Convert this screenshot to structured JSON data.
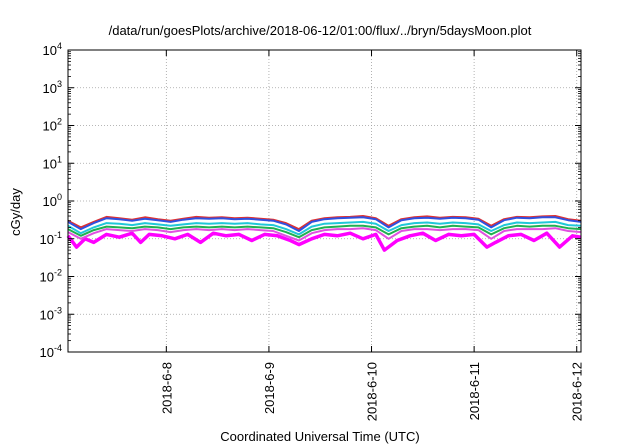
{
  "chart_data": {
    "type": "line",
    "title": "/data/run/goesPlots/archive/2018-06-12/01:00/flux/../bryn/5daysMoon.plot",
    "xlabel": "Coordinated Universal Time (UTC)",
    "ylabel": "cGy/day",
    "yscale": "log",
    "ylim": [
      0.0001,
      10000
    ],
    "y_ticks": [
      {
        "base": "10",
        "exp": "-4",
        "value": 0.0001
      },
      {
        "base": "10",
        "exp": "-3",
        "value": 0.001
      },
      {
        "base": "10",
        "exp": "-2",
        "value": 0.01
      },
      {
        "base": "10",
        "exp": "-1",
        "value": 0.1
      },
      {
        "base": "10",
        "exp": "0",
        "value": 1
      },
      {
        "base": "10",
        "exp": "1",
        "value": 10
      },
      {
        "base": "10",
        "exp": "2",
        "value": 100
      },
      {
        "base": "10",
        "exp": "3",
        "value": 1000
      },
      {
        "base": "10",
        "exp": "4",
        "value": 10000
      }
    ],
    "xlim": [
      "2018-06-07T01:00",
      "2018-06-12T01:00"
    ],
    "x_ticks": [
      {
        "label": "2018-6-8",
        "date": "2018-06-08"
      },
      {
        "label": "2018-6-9",
        "date": "2018-06-09"
      },
      {
        "label": "2018-6-10",
        "date": "2018-06-10"
      },
      {
        "label": "2018-6-11",
        "date": "2018-06-11"
      },
      {
        "label": "2018-6-12",
        "date": "2018-06-12"
      }
    ],
    "grid": true,
    "series": [
      {
        "color": "#e03030",
        "x": [
          "2018-06-07T01:00",
          "2018-06-07T04:00",
          "2018-06-07T07:00",
          "2018-06-07T10:00",
          "2018-06-07T13:00",
          "2018-06-07T16:00",
          "2018-06-07T19:00",
          "2018-06-07T22:00",
          "2018-06-08T01:00",
          "2018-06-08T04:00",
          "2018-06-08T07:00",
          "2018-06-08T10:00",
          "2018-06-08T13:00",
          "2018-06-08T16:00",
          "2018-06-08T19:00",
          "2018-06-08T22:00",
          "2018-06-09T01:00",
          "2018-06-09T04:00",
          "2018-06-09T07:00",
          "2018-06-09T10:00",
          "2018-06-09T13:00",
          "2018-06-09T16:00",
          "2018-06-09T19:00",
          "2018-06-09T22:00",
          "2018-06-10T01:00",
          "2018-06-10T04:00",
          "2018-06-10T07:00",
          "2018-06-10T10:00",
          "2018-06-10T13:00",
          "2018-06-10T16:00",
          "2018-06-10T19:00",
          "2018-06-10T22:00",
          "2018-06-11T01:00",
          "2018-06-11T04:00",
          "2018-06-11T07:00",
          "2018-06-11T10:00",
          "2018-06-11T13:00",
          "2018-06-11T16:00",
          "2018-06-11T19:00",
          "2018-06-11T22:00",
          "2018-06-12T01:00"
        ],
        "y": [
          0.3,
          0.2,
          0.28,
          0.38,
          0.35,
          0.32,
          0.37,
          0.33,
          0.3,
          0.34,
          0.38,
          0.36,
          0.37,
          0.35,
          0.36,
          0.34,
          0.32,
          0.26,
          0.18,
          0.3,
          0.35,
          0.37,
          0.38,
          0.4,
          0.35,
          0.22,
          0.33,
          0.37,
          0.39,
          0.36,
          0.38,
          0.37,
          0.34,
          0.22,
          0.33,
          0.38,
          0.37,
          0.39,
          0.4,
          0.33,
          0.3
        ]
      },
      {
        "color": "#3050e0",
        "x": [
          "2018-06-07T01:00",
          "2018-06-07T04:00",
          "2018-06-07T07:00",
          "2018-06-07T10:00",
          "2018-06-07T13:00",
          "2018-06-07T16:00",
          "2018-06-07T19:00",
          "2018-06-07T22:00",
          "2018-06-08T01:00",
          "2018-06-08T04:00",
          "2018-06-08T07:00",
          "2018-06-08T10:00",
          "2018-06-08T13:00",
          "2018-06-08T16:00",
          "2018-06-08T19:00",
          "2018-06-08T22:00",
          "2018-06-09T01:00",
          "2018-06-09T04:00",
          "2018-06-09T07:00",
          "2018-06-09T10:00",
          "2018-06-09T13:00",
          "2018-06-09T16:00",
          "2018-06-09T19:00",
          "2018-06-09T22:00",
          "2018-06-10T01:00",
          "2018-06-10T04:00",
          "2018-06-10T07:00",
          "2018-06-10T10:00",
          "2018-06-10T13:00",
          "2018-06-10T16:00",
          "2018-06-10T19:00",
          "2018-06-10T22:00",
          "2018-06-11T01:00",
          "2018-06-11T04:00",
          "2018-06-11T07:00",
          "2018-06-11T10:00",
          "2018-06-11T13:00",
          "2018-06-11T16:00",
          "2018-06-11T19:00",
          "2018-06-11T22:00",
          "2018-06-12T01:00"
        ],
        "y": [
          0.28,
          0.18,
          0.26,
          0.35,
          0.33,
          0.3,
          0.34,
          0.31,
          0.28,
          0.32,
          0.35,
          0.34,
          0.35,
          0.33,
          0.34,
          0.32,
          0.3,
          0.24,
          0.16,
          0.28,
          0.33,
          0.35,
          0.36,
          0.37,
          0.33,
          0.2,
          0.31,
          0.35,
          0.36,
          0.34,
          0.36,
          0.35,
          0.32,
          0.2,
          0.31,
          0.36,
          0.35,
          0.37,
          0.37,
          0.31,
          0.28
        ]
      },
      {
        "color": "#20c8d8",
        "x": [
          "2018-06-07T01:00",
          "2018-06-07T04:00",
          "2018-06-07T07:00",
          "2018-06-07T10:00",
          "2018-06-07T13:00",
          "2018-06-07T16:00",
          "2018-06-07T19:00",
          "2018-06-07T22:00",
          "2018-06-08T01:00",
          "2018-06-08T04:00",
          "2018-06-08T07:00",
          "2018-06-08T10:00",
          "2018-06-08T13:00",
          "2018-06-08T16:00",
          "2018-06-08T19:00",
          "2018-06-08T22:00",
          "2018-06-09T01:00",
          "2018-06-09T04:00",
          "2018-06-09T07:00",
          "2018-06-09T10:00",
          "2018-06-09T13:00",
          "2018-06-09T16:00",
          "2018-06-09T19:00",
          "2018-06-09T22:00",
          "2018-06-10T01:00",
          "2018-06-10T04:00",
          "2018-06-10T07:00",
          "2018-06-10T10:00",
          "2018-06-10T13:00",
          "2018-06-10T16:00",
          "2018-06-10T19:00",
          "2018-06-10T22:00",
          "2018-06-11T01:00",
          "2018-06-11T04:00",
          "2018-06-11T07:00",
          "2018-06-11T10:00",
          "2018-06-11T13:00",
          "2018-06-11T16:00",
          "2018-06-11T19:00",
          "2018-06-11T22:00",
          "2018-06-12T01:00"
        ],
        "y": [
          0.22,
          0.14,
          0.2,
          0.26,
          0.25,
          0.23,
          0.26,
          0.24,
          0.22,
          0.24,
          0.26,
          0.25,
          0.26,
          0.25,
          0.26,
          0.24,
          0.23,
          0.18,
          0.13,
          0.21,
          0.25,
          0.26,
          0.27,
          0.28,
          0.25,
          0.16,
          0.23,
          0.26,
          0.27,
          0.25,
          0.27,
          0.26,
          0.24,
          0.16,
          0.23,
          0.27,
          0.26,
          0.27,
          0.28,
          0.23,
          0.22
        ]
      },
      {
        "color": "#20b050",
        "x": [
          "2018-06-07T01:00",
          "2018-06-07T04:00",
          "2018-06-07T07:00",
          "2018-06-07T10:00",
          "2018-06-07T13:00",
          "2018-06-07T16:00",
          "2018-06-07T19:00",
          "2018-06-07T22:00",
          "2018-06-08T01:00",
          "2018-06-08T04:00",
          "2018-06-08T07:00",
          "2018-06-08T10:00",
          "2018-06-08T13:00",
          "2018-06-08T16:00",
          "2018-06-08T19:00",
          "2018-06-08T22:00",
          "2018-06-09T01:00",
          "2018-06-09T04:00",
          "2018-06-09T07:00",
          "2018-06-09T10:00",
          "2018-06-09T13:00",
          "2018-06-09T16:00",
          "2018-06-09T19:00",
          "2018-06-09T22:00",
          "2018-06-10T01:00",
          "2018-06-10T04:00",
          "2018-06-10T07:00",
          "2018-06-10T10:00",
          "2018-06-10T13:00",
          "2018-06-10T16:00",
          "2018-06-10T19:00",
          "2018-06-10T22:00",
          "2018-06-11T01:00",
          "2018-06-11T04:00",
          "2018-06-11T07:00",
          "2018-06-11T10:00",
          "2018-06-11T13:00",
          "2018-06-11T16:00",
          "2018-06-11T19:00",
          "2018-06-11T22:00",
          "2018-06-12T01:00"
        ],
        "y": [
          0.18,
          0.12,
          0.17,
          0.21,
          0.2,
          0.19,
          0.21,
          0.2,
          0.18,
          0.2,
          0.21,
          0.2,
          0.21,
          0.2,
          0.21,
          0.2,
          0.19,
          0.15,
          0.11,
          0.17,
          0.2,
          0.21,
          0.22,
          0.22,
          0.2,
          0.13,
          0.19,
          0.21,
          0.22,
          0.2,
          0.22,
          0.21,
          0.2,
          0.13,
          0.19,
          0.22,
          0.21,
          0.22,
          0.22,
          0.19,
          0.18
        ]
      },
      {
        "color": "#e050e0",
        "x": [
          "2018-06-07T01:00",
          "2018-06-07T04:00",
          "2018-06-07T07:00",
          "2018-06-07T10:00",
          "2018-06-07T13:00",
          "2018-06-07T16:00",
          "2018-06-07T19:00",
          "2018-06-07T22:00",
          "2018-06-08T01:00",
          "2018-06-08T04:00",
          "2018-06-08T07:00",
          "2018-06-08T10:00",
          "2018-06-08T13:00",
          "2018-06-08T16:00",
          "2018-06-08T19:00",
          "2018-06-08T22:00",
          "2018-06-09T01:00",
          "2018-06-09T04:00",
          "2018-06-09T07:00",
          "2018-06-09T10:00",
          "2018-06-09T13:00",
          "2018-06-09T16:00",
          "2018-06-09T19:00",
          "2018-06-09T22:00",
          "2018-06-10T01:00",
          "2018-06-10T04:00",
          "2018-06-10T07:00",
          "2018-06-10T10:00",
          "2018-06-10T13:00",
          "2018-06-10T16:00",
          "2018-06-10T19:00",
          "2018-06-10T22:00",
          "2018-06-11T01:00",
          "2018-06-11T04:00",
          "2018-06-11T07:00",
          "2018-06-11T10:00",
          "2018-06-11T13:00",
          "2018-06-11T16:00",
          "2018-06-11T19:00",
          "2018-06-11T22:00",
          "2018-06-12T01:00"
        ],
        "y": [
          0.15,
          0.1,
          0.14,
          0.18,
          0.17,
          0.16,
          0.18,
          0.17,
          0.15,
          0.17,
          0.18,
          0.17,
          0.18,
          0.17,
          0.18,
          0.17,
          0.16,
          0.12,
          0.09,
          0.14,
          0.17,
          0.18,
          0.18,
          0.19,
          0.17,
          0.1,
          0.16,
          0.18,
          0.18,
          0.17,
          0.18,
          0.18,
          0.17,
          0.1,
          0.16,
          0.18,
          0.18,
          0.18,
          0.19,
          0.16,
          0.15
        ]
      },
      {
        "color": "#ff00ff",
        "x": [
          "2018-06-07T01:00",
          "2018-06-07T03:00",
          "2018-06-07T05:00",
          "2018-06-07T07:00",
          "2018-06-07T10:00",
          "2018-06-07T13:00",
          "2018-06-07T16:00",
          "2018-06-07T18:00",
          "2018-06-07T20:00",
          "2018-06-07T23:00",
          "2018-06-08T02:00",
          "2018-06-08T05:00",
          "2018-06-08T08:00",
          "2018-06-08T11:00",
          "2018-06-08T14:00",
          "2018-06-08T17:00",
          "2018-06-08T20:00",
          "2018-06-08T23:00",
          "2018-06-09T02:00",
          "2018-06-09T05:00",
          "2018-06-09T07:00",
          "2018-06-09T10:00",
          "2018-06-09T13:00",
          "2018-06-09T16:00",
          "2018-06-09T19:00",
          "2018-06-09T22:00",
          "2018-06-10T01:00",
          "2018-06-10T03:00",
          "2018-06-10T06:00",
          "2018-06-10T09:00",
          "2018-06-10T12:00",
          "2018-06-10T15:00",
          "2018-06-10T18:00",
          "2018-06-10T21:00",
          "2018-06-11T00:00",
          "2018-06-11T03:00",
          "2018-06-11T05:00",
          "2018-06-11T08:00",
          "2018-06-11T11:00",
          "2018-06-11T14:00",
          "2018-06-11T17:00",
          "2018-06-11T20:00",
          "2018-06-11T23:00",
          "2018-06-12T01:00"
        ],
        "y": [
          0.12,
          0.06,
          0.1,
          0.08,
          0.13,
          0.11,
          0.14,
          0.08,
          0.13,
          0.12,
          0.1,
          0.13,
          0.08,
          0.14,
          0.12,
          0.13,
          0.09,
          0.13,
          0.12,
          0.09,
          0.07,
          0.1,
          0.13,
          0.12,
          0.14,
          0.1,
          0.13,
          0.05,
          0.09,
          0.12,
          0.14,
          0.09,
          0.13,
          0.12,
          0.13,
          0.06,
          0.08,
          0.12,
          0.13,
          0.09,
          0.14,
          0.06,
          0.12,
          0.11
        ]
      }
    ]
  }
}
